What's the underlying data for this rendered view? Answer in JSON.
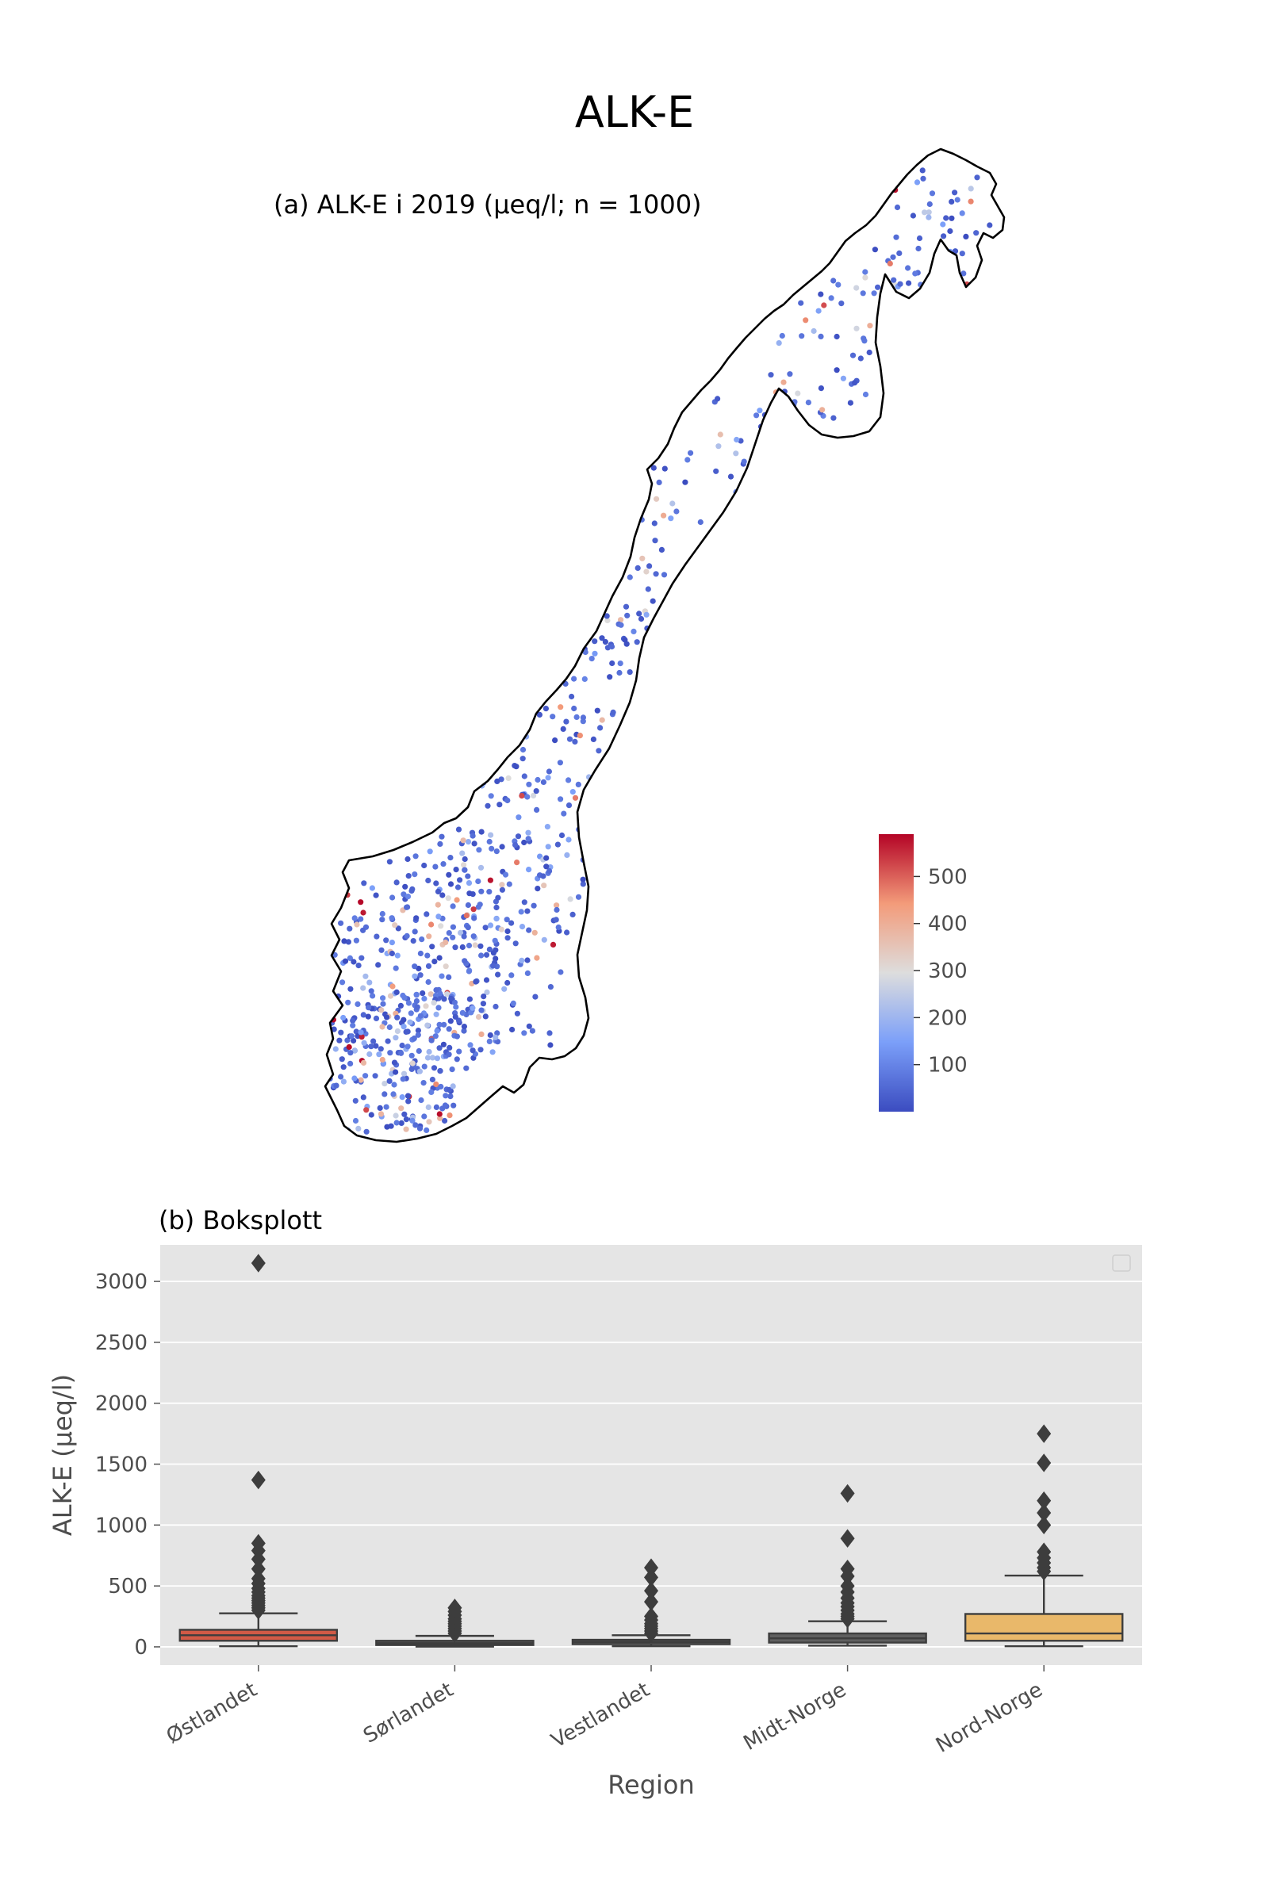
{
  "figure": {
    "title": "ALK-E"
  },
  "chart_data": [
    {
      "type": "scatter",
      "subtitle": "(a) ALK-E i 2019 (µeq/l; n = 1000)",
      "colormap": "coolwarm",
      "colors": {
        "low": "#3b4cc0",
        "mid": "#dddddd",
        "high": "#b40426",
        "coast": "#000000"
      },
      "colorbar": {
        "range": [
          0,
          590
        ],
        "ticks": [
          100,
          200,
          300,
          400,
          500
        ],
        "tick_labels": [
          "100",
          "200",
          "300",
          "400",
          "500"
        ]
      },
      "legend": "none"
    },
    {
      "type": "box",
      "subtitle": "(b) Boksplott",
      "xlabel": "Region",
      "ylabel": "ALK-E (µeq/l)",
      "ylim": [
        -150,
        3300
      ],
      "yticks": [
        0,
        500,
        1000,
        1500,
        2000,
        2500,
        3000
      ],
      "ytick_labels": [
        "0",
        "500",
        "1000",
        "1500",
        "2000",
        "2500",
        "3000"
      ],
      "grid": true,
      "legend": "top-right (empty)",
      "categories": [
        "Østlandet",
        "Sørlandet",
        "Vestlandet",
        "Midt-Norge",
        "Nord-Norge"
      ],
      "colors": {
        "background": "#e5e5e5",
        "box_edge": "#3d3d3d",
        "boxes": [
          "#d15a46",
          "#575757",
          "#595959",
          "#5f5f5f",
          "#e9b86a"
        ]
      },
      "boxes": [
        {
          "region": "Østlandet",
          "whisker_low": 5,
          "q1": 50,
          "median": 95,
          "q3": 140,
          "whisker_high": 275,
          "outliers": [
            300,
            320,
            340,
            360,
            380,
            400,
            420,
            450,
            480,
            520,
            560,
            640,
            720,
            790,
            850,
            1370,
            3150
          ]
        },
        {
          "region": "Sørlandet",
          "whisker_low": 2,
          "q1": 15,
          "median": 30,
          "q3": 50,
          "whisker_high": 90,
          "outliers": [
            110,
            130,
            150,
            170,
            190,
            210,
            230,
            260,
            290,
            320
          ]
        },
        {
          "region": "Vestlandet",
          "whisker_low": 5,
          "q1": 22,
          "median": 40,
          "q3": 58,
          "whisker_high": 95,
          "outliers": [
            110,
            130,
            150,
            170,
            190,
            220,
            250,
            370,
            460,
            570,
            650
          ]
        },
        {
          "region": "Midt-Norge",
          "whisker_low": 10,
          "q1": 35,
          "median": 70,
          "q3": 110,
          "whisker_high": 210,
          "outliers": [
            230,
            250,
            270,
            300,
            330,
            360,
            400,
            450,
            500,
            580,
            640,
            890,
            1260
          ]
        },
        {
          "region": "Nord-Norge",
          "whisker_low": 5,
          "q1": 50,
          "median": 110,
          "q3": 270,
          "whisker_high": 585,
          "outliers": [
            620,
            650,
            690,
            730,
            780,
            1000,
            1100,
            1200,
            1510,
            1750
          ]
        }
      ]
    }
  ]
}
